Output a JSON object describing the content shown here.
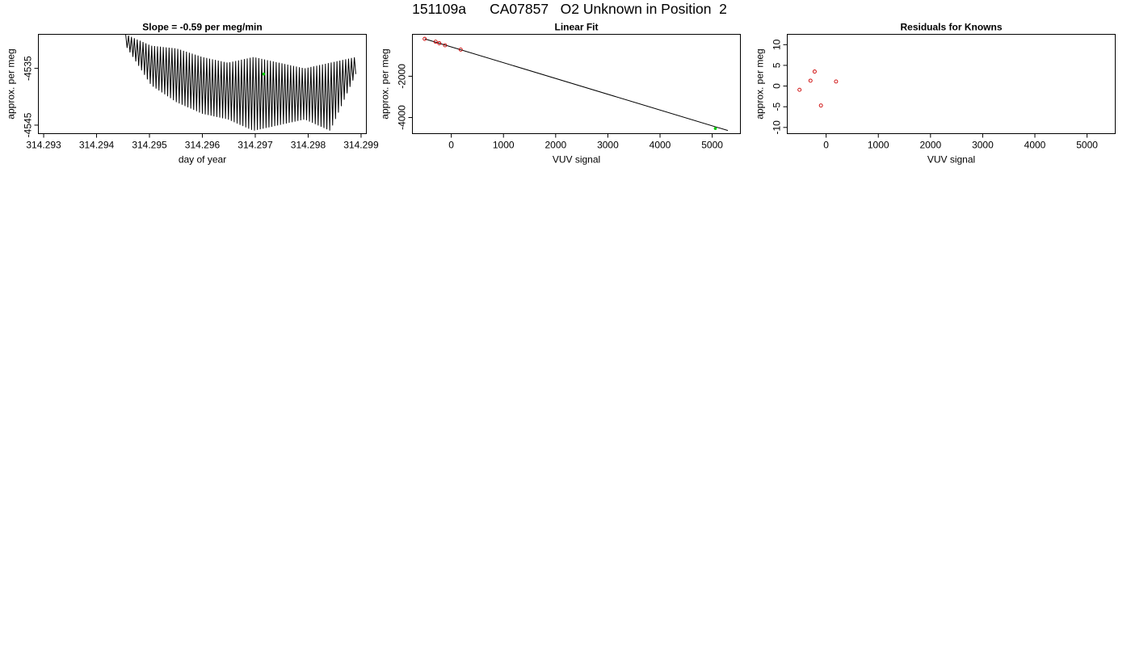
{
  "title": "151109a      CA07857   O2 Unknown in Position  2",
  "chart_data": [
    {
      "type": "line",
      "title": "Slope =  -0.59  per meg/min",
      "xlabel": "day of year",
      "ylabel": "approx. per meg",
      "xlim": [
        314.2929,
        314.2991
      ],
      "ylim": [
        -4546.5,
        -4529.0
      ],
      "xticks": [
        314.293,
        314.294,
        314.295,
        314.296,
        314.297,
        314.298,
        314.299
      ],
      "xtick_labels": [
        "314.293",
        "314.294",
        "314.295",
        "314.296",
        "314.297",
        "314.298",
        "314.299"
      ],
      "yticks": [
        -4535,
        -4545
      ],
      "ytick_labels": [
        "-4535",
        "-4545"
      ],
      "series": [
        {
          "x_start": 314.29455,
          "x_end": 314.2989,
          "n_points": 160,
          "y_upper": [
            -4529.0,
            -4531.0,
            -4531.5,
            -4533.0,
            -4534.0,
            -4533.0,
            -4534.0,
            -4535.0,
            -4534.0,
            -4533.0
          ],
          "y_lower": [
            -4531.0,
            -4538.0,
            -4541.0,
            -4543.0,
            -4544.0,
            -4546.0,
            -4545.0,
            -4544.0,
            -4546.0,
            -4536.0
          ],
          "color": "#000000"
        }
      ],
      "highlight_point": {
        "x": 314.29716,
        "y": -4536.0,
        "color": "#00cc00"
      }
    },
    {
      "type": "scatter",
      "title": "Linear Fit",
      "xlabel": "VUV signal",
      "ylabel": "approx. per meg",
      "xlim": [
        -745,
        5540
      ],
      "ylim": [
        -4780,
        30
      ],
      "xticks": [
        0,
        1000,
        2000,
        3000,
        4000,
        5000
      ],
      "xtick_labels": [
        "0",
        "1000",
        "2000",
        "3000",
        "4000",
        "5000"
      ],
      "yticks": [
        -2000,
        -4000
      ],
      "ytick_labels": [
        "-2000",
        "-4000"
      ],
      "points": [
        {
          "x": -510,
          "y": -190
        },
        {
          "x": -300,
          "y": -330
        },
        {
          "x": -230,
          "y": -400
        },
        {
          "x": -120,
          "y": -500
        },
        {
          "x": 180,
          "y": -710
        }
      ],
      "point_color": "#cc0000",
      "fit_line": {
        "x": [
          -510,
          5300
        ],
        "y": [
          -190,
          -4630
        ]
      },
      "unknown_point": {
        "x": 5060,
        "y": -4530,
        "color": "#00cc00"
      }
    },
    {
      "type": "scatter",
      "title": "Residuals for Knowns",
      "xlabel": "VUV signal",
      "ylabel": "approx. per meg",
      "xlim": [
        -745,
        5540
      ],
      "ylim": [
        -11.5,
        12.5
      ],
      "xticks": [
        0,
        1000,
        2000,
        3000,
        4000,
        5000
      ],
      "xtick_labels": [
        "0",
        "1000",
        "2000",
        "3000",
        "4000",
        "5000"
      ],
      "yticks": [
        10,
        5,
        0,
        -5,
        -10
      ],
      "ytick_labels": [
        "10",
        "5",
        "0",
        "-5",
        "-10"
      ],
      "points": [
        {
          "x": -510,
          "y": -0.9
        },
        {
          "x": -300,
          "y": 1.3
        },
        {
          "x": -220,
          "y": 3.5
        },
        {
          "x": -100,
          "y": -4.7
        },
        {
          "x": 190,
          "y": 1.1
        }
      ],
      "point_color": "#cc0000"
    }
  ]
}
